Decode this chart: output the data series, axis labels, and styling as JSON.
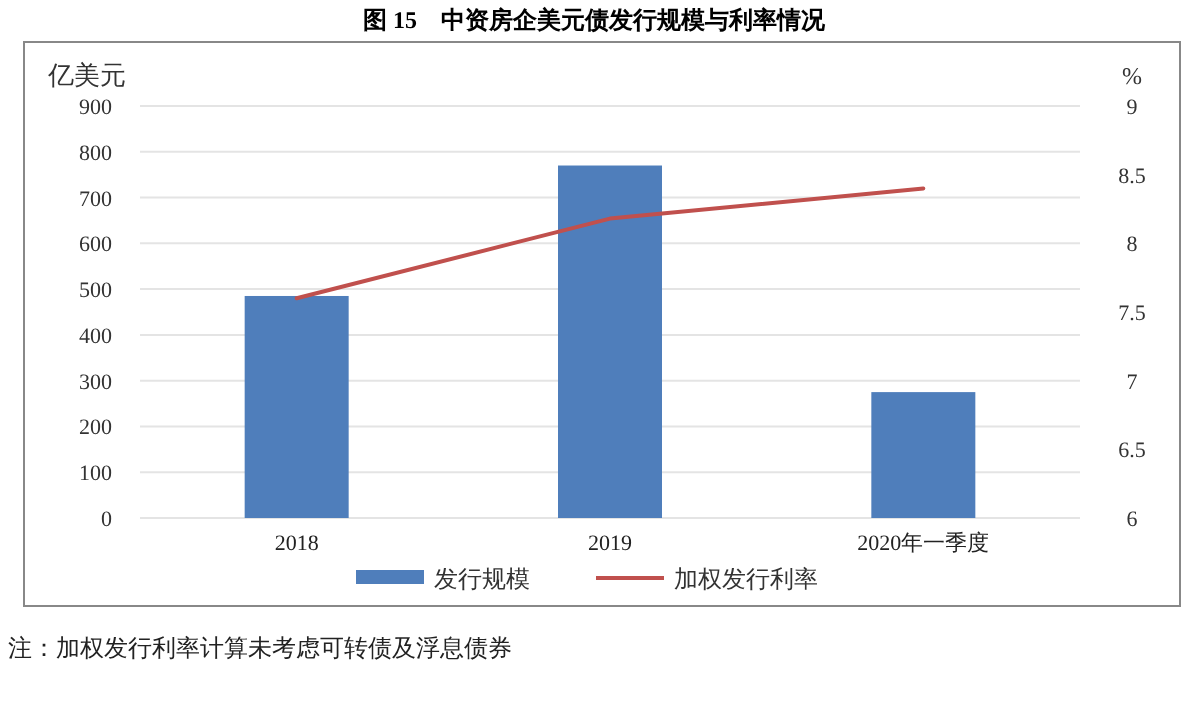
{
  "chart_data": {
    "type": "bar",
    "title": "图 15　中资房企美元债发行规模与利率情况",
    "categories": [
      "2018",
      "2019",
      "2020年一季度"
    ],
    "series": [
      {
        "name": "发行规模",
        "color": "#4f7ebb",
        "values": [
          485,
          770,
          275
        ]
      },
      {
        "type": "line",
        "name": "加权发行利率",
        "color": "#c0504d",
        "values": [
          7.6,
          8.18,
          8.4
        ],
        "axis": "y2"
      }
    ],
    "ylabel": "亿美元",
    "y2label": "%",
    "ylim": [
      0,
      900
    ],
    "yticks": [
      0,
      100,
      200,
      300,
      400,
      500,
      600,
      700,
      800,
      900
    ],
    "y2lim": [
      6,
      9
    ],
    "y2ticks": [
      6,
      6.5,
      7,
      7.5,
      8,
      8.5,
      9
    ],
    "grid": "y",
    "legend": "bottom",
    "annotations": [
      "注：加权发行利率计算未考虑可转债及浮息债券"
    ]
  }
}
